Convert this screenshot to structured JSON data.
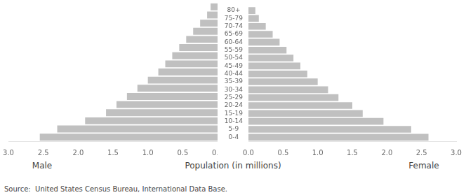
{
  "chart_data": {
    "type": "bar",
    "orientation": "horizontal",
    "categories": [
      "0-4",
      "5-9",
      "10-14",
      "15-19",
      "20-24",
      "25-29",
      "30-34",
      "35-39",
      "40-44",
      "45-49",
      "50-54",
      "55-59",
      "60-64",
      "65-69",
      "70-74",
      "75-79",
      "80+"
    ],
    "series": [
      {
        "name": "Male",
        "color": "#c0c0c0",
        "values": [
          2.55,
          2.3,
          1.9,
          1.6,
          1.45,
          1.3,
          1.15,
          1.0,
          0.85,
          0.75,
          0.65,
          0.55,
          0.45,
          0.35,
          0.25,
          0.15,
          0.1
        ]
      },
      {
        "name": "Female",
        "color": "#c0c0c0",
        "values": [
          2.6,
          2.35,
          1.95,
          1.65,
          1.5,
          1.3,
          1.15,
          1.0,
          0.85,
          0.75,
          0.65,
          0.55,
          0.45,
          0.35,
          0.25,
          0.15,
          0.1
        ]
      }
    ],
    "xlabel": "Population (in millions)",
    "xlim": [
      0,
      3.0
    ],
    "xticks": [
      {
        "value": 0,
        "label": "0.0"
      },
      0.5,
      {
        "value": 1,
        "label": "1.0"
      },
      1.5,
      {
        "value": 2,
        "label": "2.0"
      },
      2.5,
      {
        "value": 3,
        "label": "3.0"
      }
    ],
    "annotations": [
      "Source:  United States Census Bureau, International Data Base."
    ],
    "grid": false
  }
}
